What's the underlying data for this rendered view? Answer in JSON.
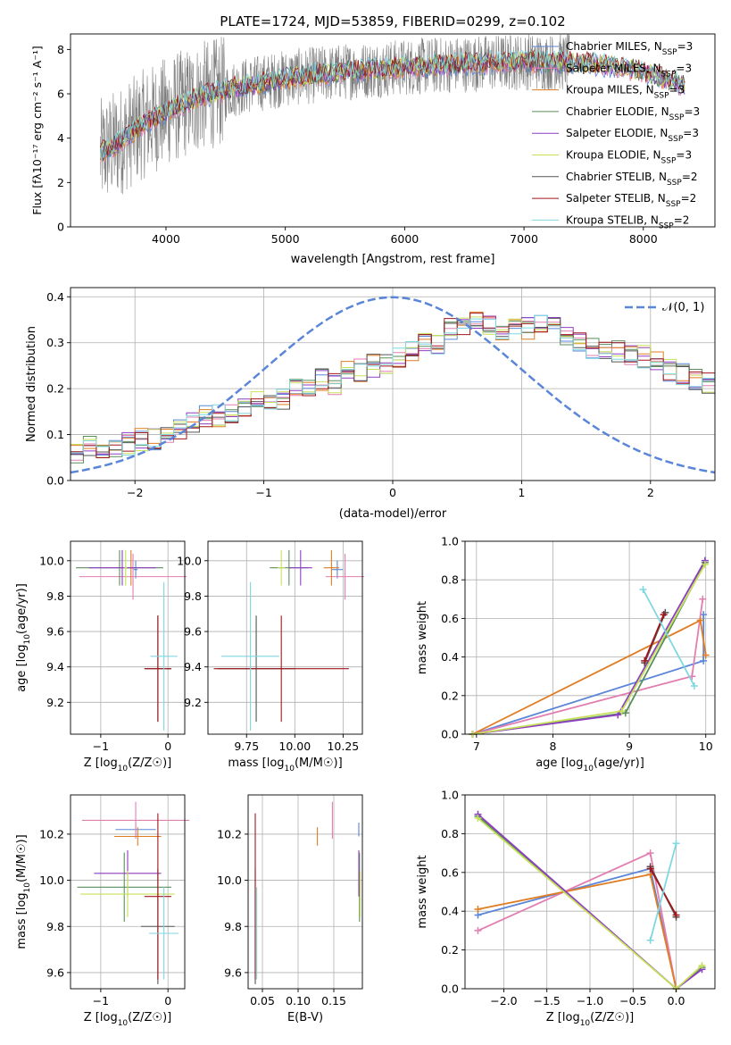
{
  "figure": {
    "title": "PLATE=1724, MJD=53859, FIBERID=0299, z=0.102"
  },
  "palette": {
    "chabrier_miles": "#5b86d8",
    "salpeter_miles": "#e27eb0",
    "kroupa_miles": "#e07d22",
    "chabrier_elodie": "#5a8f5a",
    "salpeter_elodie": "#8e3ec2",
    "kroupa_elodie": "#c7e05a",
    "chabrier_stelib": "#555555",
    "salpeter_stelib": "#a0171b",
    "kroupa_stelib": "#7fd7e0",
    "data_spectrum": "#7f7f7f",
    "normal_curve": "#5b86d8"
  },
  "chart_data": [
    {
      "id": "spectrum",
      "type": "line",
      "title": "PLATE=1724, MJD=53859, FIBERID=0299, z=0.102",
      "xlabel": "wavelength [Angstrom, rest frame]",
      "ylabel": "Flux [fλ10⁻¹⁷ erg cm⁻² s⁻¹ A⁻¹]",
      "xlim": [
        3200,
        8600
      ],
      "ylim": [
        0,
        8.7
      ],
      "xticks": [
        4000,
        5000,
        6000,
        7000,
        8000
      ],
      "yticks": [
        0,
        2,
        4,
        6,
        8
      ],
      "grid": false,
      "legend_position": "top-right",
      "continuum": [
        [
          3450,
          3.3
        ],
        [
          3600,
          3.8
        ],
        [
          3800,
          4.6
        ],
        [
          4000,
          5.2
        ],
        [
          4300,
          5.9
        ],
        [
          4700,
          6.4
        ],
        [
          5000,
          6.7
        ],
        [
          5500,
          7.0
        ],
        [
          6000,
          7.2
        ],
        [
          6500,
          7.35
        ],
        [
          7000,
          7.45
        ],
        [
          7500,
          7.4
        ],
        [
          7800,
          7.25
        ],
        [
          8100,
          6.8
        ],
        [
          8350,
          6.4
        ]
      ],
      "model_range": [
        3450,
        8350
      ],
      "data_range": [
        3450,
        7380
      ],
      "series": [
        {
          "name": "Chabrier MILES, N_SSP=3",
          "label_main": "Chabrier MILES, N",
          "label_sub": "SSP",
          "label_end": "=3",
          "color": "#5b86d8"
        },
        {
          "name": "Salpeter MILES, N_SSP=3",
          "label_main": "Salpeter MILES, N",
          "label_sub": "SSP",
          "label_end": "=3",
          "color": "#e27eb0"
        },
        {
          "name": "Kroupa MILES, N_SSP=3",
          "label_main": "Kroupa MILES, N",
          "label_sub": "SSP",
          "label_end": "=3",
          "color": "#e07d22"
        },
        {
          "name": "Chabrier ELODIE, N_SSP=3",
          "label_main": "Chabrier ELODIE, N",
          "label_sub": "SSP",
          "label_end": "=3",
          "color": "#5a8f5a"
        },
        {
          "name": "Salpeter ELODIE, N_SSP=3",
          "label_main": "Salpeter ELODIE, N",
          "label_sub": "SSP",
          "label_end": "=3",
          "color": "#8e3ec2"
        },
        {
          "name": "Kroupa ELODIE, N_SSP=3",
          "label_main": "Kroupa ELODIE, N",
          "label_sub": "SSP",
          "label_end": "=3",
          "color": "#c7e05a"
        },
        {
          "name": "Chabrier STELIB, N_SSP=2",
          "label_main": "Chabrier STELIB, N",
          "label_sub": "SSP",
          "label_end": "=2",
          "color": "#555555"
        },
        {
          "name": "Salpeter STELIB, N_SSP=2",
          "label_main": "Salpeter STELIB, N",
          "label_sub": "SSP",
          "label_end": "=2",
          "color": "#a0171b"
        },
        {
          "name": "Kroupa STELIB, N_SSP=2",
          "label_main": "Kroupa STELIB, N",
          "label_sub": "SSP",
          "label_end": "=2",
          "color": "#7fd7e0"
        }
      ]
    },
    {
      "id": "residuals",
      "type": "step",
      "xlabel": "(data-model)/error",
      "ylabel": "Normed distribution",
      "xlim": [
        -2.5,
        2.5
      ],
      "ylim": [
        0,
        0.42
      ],
      "xticks": [
        -2,
        -1,
        0,
        1,
        2
      ],
      "yticks": [
        0.0,
        0.1,
        0.2,
        0.3,
        0.4
      ],
      "grid": true,
      "legend_position": "top-right",
      "legend_label": "𝒩(0, 1)",
      "bin_width": 0.1,
      "bin_start": -2.5,
      "base_hist": [
        0.055,
        0.075,
        0.07,
        0.075,
        0.08,
        0.09,
        0.09,
        0.095,
        0.11,
        0.13,
        0.14,
        0.14,
        0.15,
        0.16,
        0.17,
        0.18,
        0.18,
        0.2,
        0.2,
        0.22,
        0.21,
        0.24,
        0.24,
        0.25,
        0.25,
        0.27,
        0.28,
        0.3,
        0.3,
        0.33,
        0.34,
        0.35,
        0.34,
        0.33,
        0.33,
        0.33,
        0.34,
        0.33,
        0.32,
        0.3,
        0.29,
        0.28,
        0.28,
        0.27,
        0.27,
        0.26,
        0.24,
        0.23,
        0.22,
        0.21,
        0.21,
        0.2,
        0.19,
        0.19,
        0.18,
        0.16,
        0.15,
        0.14,
        0.14,
        0.12,
        0.11,
        0.11,
        0.1,
        0.1,
        0.09,
        0.085,
        0.08,
        0.075,
        0.07,
        0.065,
        0.07,
        0.06,
        0.06,
        0.055,
        0.06,
        0.06,
        0.06,
        0.055,
        0.06,
        0.065
      ],
      "normal_mean": 0,
      "normal_sigma": 1
    },
    {
      "id": "age_vs_Z",
      "type": "errorbar",
      "xlabel_main": "Z [log",
      "xlabel_sub": "10",
      "xlabel_end": "(Z/Z☉)]",
      "ylabel_main": "age  [log",
      "ylabel_sub": "10",
      "ylabel_end": "(age/yr)]",
      "xlim": [
        -1.45,
        0.25
      ],
      "ylim": [
        9.02,
        10.11
      ],
      "xticks": [
        -1,
        0
      ],
      "yticks": [
        9.2,
        9.4,
        9.6,
        9.8,
        10.0
      ],
      "grid": true,
      "points": [
        {
          "color": "#5b86d8",
          "x": -0.48,
          "xerr": 0.03,
          "y": 9.95,
          "yerr": 0.05
        },
        {
          "color": "#e27eb0",
          "x": -0.52,
          "xerr": 0.8,
          "y": 9.91,
          "yerr": 0.13
        },
        {
          "color": "#e07d22",
          "x": -0.55,
          "xerr": 0.05,
          "y": 9.96,
          "yerr": 0.1
        },
        {
          "color": "#5a8f5a",
          "x": -0.72,
          "xerr": 0.65,
          "y": 9.96,
          "yerr": 0.1
        },
        {
          "color": "#8e3ec2",
          "x": -0.68,
          "xerr": 0.5,
          "y": 9.96,
          "yerr": 0.1
        },
        {
          "color": "#c7e05a",
          "x": -0.63,
          "xerr": 0.02,
          "y": 9.96,
          "yerr": 0.1
        },
        {
          "color": "#555555",
          "x": -0.15,
          "xerr": 0.2,
          "y": 9.39,
          "yerr": 0.3
        },
        {
          "color": "#a0171b",
          "x": -0.15,
          "xerr": 0.2,
          "y": 9.39,
          "yerr": 0.3
        },
        {
          "color": "#7fd7e0",
          "x": -0.06,
          "xerr": 0.2,
          "y": 9.46,
          "yerr": 0.42
        }
      ]
    },
    {
      "id": "age_vs_mass",
      "type": "errorbar",
      "xlabel_main": "mass [log",
      "xlabel_sub": "10",
      "xlabel_end": "(M/M☉)]",
      "xlim": [
        9.55,
        10.35
      ],
      "ylim": [
        9.02,
        10.11
      ],
      "xticks": [
        9.75,
        10.0,
        10.25
      ],
      "xtick_labels": [
        "9.75",
        "10.00",
        "10.25"
      ],
      "yticks": [
        9.2,
        9.4,
        9.6,
        9.8,
        10.0
      ],
      "grid": true,
      "points": [
        {
          "color": "#5b86d8",
          "x": 10.22,
          "xerr": 0.03,
          "y": 9.95,
          "yerr": 0.05
        },
        {
          "color": "#e27eb0",
          "x": 10.26,
          "xerr": 0.1,
          "y": 9.91,
          "yerr": 0.13
        },
        {
          "color": "#e07d22",
          "x": 10.19,
          "xerr": 0.04,
          "y": 9.96,
          "yerr": 0.1
        },
        {
          "color": "#5a8f5a",
          "x": 9.97,
          "xerr": 0.1,
          "y": 9.96,
          "yerr": 0.1
        },
        {
          "color": "#8e3ec2",
          "x": 10.03,
          "xerr": 0.06,
          "y": 9.96,
          "yerr": 0.1
        },
        {
          "color": "#c7e05a",
          "x": 9.93,
          "xerr": 0.02,
          "y": 9.96,
          "yerr": 0.1
        },
        {
          "color": "#555555",
          "x": 9.8,
          "xerr": 0.2,
          "y": 9.39,
          "yerr": 0.3
        },
        {
          "color": "#a0171b",
          "x": 9.93,
          "xerr": 0.35,
          "y": 9.39,
          "yerr": 0.3
        },
        {
          "color": "#7fd7e0",
          "x": 9.77,
          "xerr": 0.15,
          "y": 9.46,
          "yerr": 0.42
        }
      ]
    },
    {
      "id": "weight_vs_age",
      "type": "line-marker",
      "xlabel_main": "age  [log",
      "xlabel_sub": "10",
      "xlabel_end": "(age/yr)]",
      "ylabel": "mass weight",
      "xlim": [
        6.85,
        10.12
      ],
      "ylim": [
        0,
        1
      ],
      "xticks": [
        7,
        8,
        9,
        10
      ],
      "yticks": [
        0.0,
        0.2,
        0.4,
        0.6,
        0.8,
        1.0
      ],
      "grid": true,
      "series": [
        {
          "color": "#5b86d8",
          "x": [
            6.95,
            9.97,
            9.97
          ],
          "y": [
            0.0,
            0.38,
            0.62
          ]
        },
        {
          "color": "#e27eb0",
          "x": [
            6.95,
            9.82,
            9.96
          ],
          "y": [
            0.0,
            0.3,
            0.7
          ]
        },
        {
          "color": "#e07d22",
          "x": [
            6.95,
            9.93,
            10.0
          ],
          "y": [
            0.0,
            0.59,
            0.41
          ]
        },
        {
          "color": "#5a8f5a",
          "x": [
            6.95,
            8.95,
            9.99
          ],
          "y": [
            0.0,
            0.11,
            0.89
          ]
        },
        {
          "color": "#8e3ec2",
          "x": [
            6.95,
            8.85,
            9.99
          ],
          "y": [
            0.0,
            0.1,
            0.9
          ]
        },
        {
          "color": "#c7e05a",
          "x": [
            6.95,
            8.9,
            9.99
          ],
          "y": [
            0.0,
            0.12,
            0.88
          ]
        },
        {
          "color": "#555555",
          "x": [
            9.2,
            9.47
          ],
          "y": [
            0.37,
            0.63
          ]
        },
        {
          "color": "#a0171b",
          "x": [
            9.2,
            9.45
          ],
          "y": [
            0.38,
            0.62
          ]
        },
        {
          "color": "#7fd7e0",
          "x": [
            9.18,
            9.85
          ],
          "y": [
            0.75,
            0.25
          ]
        }
      ]
    },
    {
      "id": "mass_vs_Z",
      "type": "errorbar",
      "xlabel_main": "Z [log",
      "xlabel_sub": "10",
      "xlabel_end": "(Z/Z☉)]",
      "ylabel_main": "mass [log",
      "ylabel_sub": "10",
      "ylabel_end": "(M/M☉)]",
      "xlim": [
        -1.45,
        0.25
      ],
      "ylim": [
        9.53,
        10.37
      ],
      "xticks": [
        -1,
        0
      ],
      "yticks": [
        9.6,
        9.8,
        10.0,
        10.2
      ],
      "grid": true,
      "points": [
        {
          "color": "#5b86d8",
          "x": -0.48,
          "xerr": 0.3,
          "y": 10.22,
          "yerr": 0.03
        },
        {
          "color": "#e27eb0",
          "x": -0.48,
          "xerr": 0.8,
          "y": 10.26,
          "yerr": 0.08
        },
        {
          "color": "#e07d22",
          "x": -0.45,
          "xerr": 0.35,
          "y": 10.19,
          "yerr": 0.04
        },
        {
          "color": "#5a8f5a",
          "x": -0.65,
          "xerr": 0.7,
          "y": 9.97,
          "yerr": 0.15
        },
        {
          "color": "#8e3ec2",
          "x": -0.6,
          "xerr": 0.5,
          "y": 10.03,
          "yerr": 0.1
        },
        {
          "color": "#c7e05a",
          "x": -0.6,
          "xerr": 0.7,
          "y": 9.94,
          "yerr": 0.1
        },
        {
          "color": "#555555",
          "x": -0.15,
          "xerr": 0.25,
          "y": 9.8,
          "yerr": 0.25
        },
        {
          "color": "#a0171b",
          "x": -0.15,
          "xerr": 0.2,
          "y": 9.93,
          "yerr": 0.36
        },
        {
          "color": "#7fd7e0",
          "x": -0.06,
          "xerr": 0.22,
          "y": 9.77,
          "yerr": 0.2
        }
      ]
    },
    {
      "id": "mass_vs_ebv",
      "type": "errorbar",
      "xlabel": "E(B-V)",
      "xlim": [
        0.03,
        0.19
      ],
      "ylim": [
        9.53,
        10.37
      ],
      "xticks": [
        0.05,
        0.1,
        0.15
      ],
      "xtick_labels": [
        "0.05",
        "0.10",
        "0.15"
      ],
      "yticks": [
        9.6,
        9.8,
        10.0,
        10.2
      ],
      "grid": true,
      "points": [
        {
          "color": "#5b86d8",
          "x": 0.185,
          "xerr": 0.0,
          "y": 10.22,
          "yerr": 0.03
        },
        {
          "color": "#e27eb0",
          "x": 0.148,
          "xerr": 0.0,
          "y": 10.26,
          "yerr": 0.08
        },
        {
          "color": "#e07d22",
          "x": 0.127,
          "xerr": 0.0,
          "y": 10.19,
          "yerr": 0.04
        },
        {
          "color": "#5a8f5a",
          "x": 0.186,
          "xerr": 0.0,
          "y": 9.97,
          "yerr": 0.15
        },
        {
          "color": "#8e3ec2",
          "x": 0.185,
          "xerr": 0.0,
          "y": 10.03,
          "yerr": 0.1
        },
        {
          "color": "#c7e05a",
          "x": 0.187,
          "xerr": 0.0,
          "y": 9.94,
          "yerr": 0.1
        },
        {
          "color": "#555555",
          "x": 0.04,
          "xerr": 0.0,
          "y": 9.8,
          "yerr": 0.25
        },
        {
          "color": "#a0171b",
          "x": 0.04,
          "xerr": 0.0,
          "y": 9.93,
          "yerr": 0.36
        },
        {
          "color": "#7fd7e0",
          "x": 0.042,
          "xerr": 0.0,
          "y": 9.77,
          "yerr": 0.2
        }
      ]
    },
    {
      "id": "weight_vs_Z",
      "type": "line-marker",
      "xlabel_main": "Z [log",
      "xlabel_sub": "10",
      "xlabel_end": "(Z/Z☉)]",
      "ylabel": "mass weight",
      "xlim": [
        -2.45,
        0.45
      ],
      "ylim": [
        0,
        1
      ],
      "xticks": [
        -2.0,
        -1.5,
        -1.0,
        -0.5,
        0.0
      ],
      "xtick_labels": [
        "−2.0",
        "−1.5",
        "−1.0",
        "−0.5",
        "0.0"
      ],
      "yticks": [
        0.0,
        0.2,
        0.4,
        0.6,
        0.8,
        1.0
      ],
      "grid": true,
      "series": [
        {
          "color": "#5b86d8",
          "x": [
            -2.3,
            -0.3,
            0.0
          ],
          "y": [
            0.38,
            0.62,
            0.0
          ]
        },
        {
          "color": "#e27eb0",
          "x": [
            -2.3,
            -0.3,
            0.0
          ],
          "y": [
            0.3,
            0.7,
            0.0
          ]
        },
        {
          "color": "#e07d22",
          "x": [
            -2.3,
            -0.3,
            0.0
          ],
          "y": [
            0.41,
            0.59,
            0.0
          ]
        },
        {
          "color": "#5a8f5a",
          "x": [
            -2.3,
            0.0,
            0.3
          ],
          "y": [
            0.89,
            0.0,
            0.11
          ]
        },
        {
          "color": "#8e3ec2",
          "x": [
            -2.3,
            0.0,
            0.3
          ],
          "y": [
            0.9,
            0.0,
            0.1
          ]
        },
        {
          "color": "#c7e05a",
          "x": [
            -2.3,
            0.0,
            0.3
          ],
          "y": [
            0.88,
            0.0,
            0.12
          ]
        },
        {
          "color": "#555555",
          "x": [
            -0.3,
            0.0
          ],
          "y": [
            0.63,
            0.37
          ]
        },
        {
          "color": "#a0171b",
          "x": [
            -0.3,
            0.0
          ],
          "y": [
            0.62,
            0.38
          ]
        },
        {
          "color": "#7fd7e0",
          "x": [
            -0.3,
            0.0
          ],
          "y": [
            0.25,
            0.75
          ]
        }
      ]
    }
  ]
}
